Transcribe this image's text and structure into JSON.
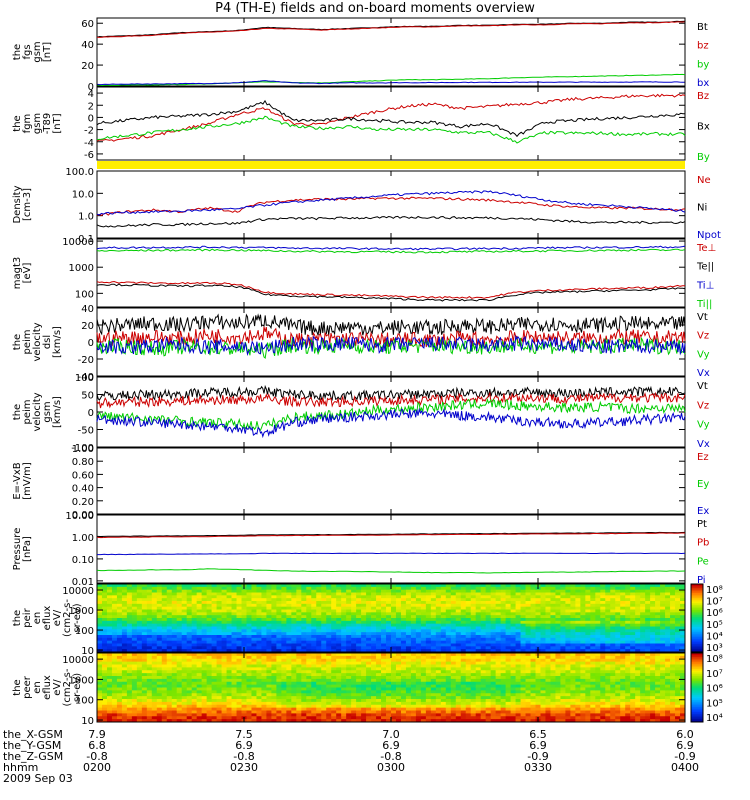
{
  "title": "P4 (TH-E) fields and on-board moments overview",
  "date_label": "2009 Sep 03",
  "colors": {
    "black": "#000000",
    "red": "#cc0000",
    "green": "#00cc00",
    "blue": "#0000cc",
    "yellow": "#ffee00",
    "dark_red": "#990000"
  },
  "chart_data": [
    {
      "type": "line",
      "panel": "fgs_gsm",
      "ylabel": [
        "the",
        "fgs",
        "gsm",
        "[nT]"
      ],
      "ylim": [
        0,
        65
      ],
      "yticks": [
        0,
        20,
        40,
        60
      ],
      "legend": [
        {
          "label": "Bt",
          "color": "#000000"
        },
        {
          "label": "bz",
          "color": "#cc0000"
        },
        {
          "label": "by",
          "color": "#00cc00"
        },
        {
          "label": "bx",
          "color": "#0000cc"
        }
      ],
      "series": [
        {
          "name": "Bt",
          "color": "#000000",
          "values": [
            47,
            48,
            49,
            51,
            52,
            53,
            56,
            55,
            54,
            55,
            56,
            57,
            57,
            58,
            58,
            59,
            59,
            60,
            60,
            61,
            61,
            62
          ]
        },
        {
          "name": "bz",
          "color": "#cc0000",
          "values": [
            46.5,
            47.5,
            48.5,
            50.5,
            51.5,
            52.5,
            55,
            54.5,
            53.5,
            54.5,
            55.5,
            56.5,
            56.5,
            57.5,
            57.5,
            58.5,
            58.5,
            59.5,
            59.5,
            60.5,
            60.5,
            61.5
          ]
        },
        {
          "name": "by",
          "color": "#00cc00",
          "values": [
            0.5,
            0.8,
            1,
            1.5,
            2,
            3,
            4,
            3.5,
            3,
            4,
            5,
            6,
            6,
            6.5,
            7,
            8,
            8.5,
            9,
            9.5,
            10,
            10.5,
            11
          ]
        },
        {
          "name": "bx",
          "color": "#0000cc",
          "values": [
            1.5,
            1.8,
            2,
            2.2,
            2.5,
            3,
            5,
            3,
            2.5,
            3,
            3,
            3.2,
            3.2,
            3.5,
            3.5,
            3.6,
            3.6,
            3.7,
            3.7,
            3.8,
            3.8,
            3.9
          ]
        }
      ]
    },
    {
      "type": "line",
      "panel": "fgm_gsm_dipole",
      "ylabel": [
        "the",
        "fgm",
        "gsm",
        "-T89",
        "[nT]"
      ],
      "ylim": [
        -7,
        5
      ],
      "yticks": [
        -6,
        -4,
        -2,
        0,
        2,
        4
      ],
      "legend": [
        {
          "label": "Bz",
          "color": "#cc0000"
        },
        {
          "label": "Bx",
          "color": "#000000"
        },
        {
          "label": "By",
          "color": "#00cc00"
        }
      ],
      "series": [
        {
          "name": "Bz",
          "color": "#cc0000",
          "values": [
            -4,
            -3.5,
            -3,
            -2,
            -1,
            0.5,
            1.5,
            -1,
            -1.2,
            0,
            1,
            1.8,
            2.2,
            1.5,
            1.8,
            2.2,
            2.5,
            3,
            3.2,
            3.5,
            3.6,
            3.6
          ]
        },
        {
          "name": "Bx",
          "color": "#000000",
          "values": [
            -1,
            -0.5,
            0,
            0.2,
            0.5,
            1,
            2.5,
            -0.5,
            -0.5,
            -0.2,
            -0.5,
            -0.8,
            -0.8,
            -1.5,
            -1,
            -3,
            -0.8,
            -0.5,
            -0.2,
            0,
            0.3,
            0.5
          ]
        },
        {
          "name": "By",
          "color": "#00cc00",
          "values": [
            -3.5,
            -3,
            -2.5,
            -2,
            -1.5,
            -1,
            0,
            -1.5,
            -1.8,
            -1.5,
            -2,
            -2,
            -2,
            -2.5,
            -2.5,
            -4,
            -2.5,
            -2.6,
            -2.6,
            -2.8,
            -2.7,
            -2.8
          ]
        }
      ]
    },
    {
      "type": "line",
      "panel": "density",
      "scale": "log",
      "ylabel": [
        "Density",
        "[cm-3]"
      ],
      "ylim": [
        0.1,
        100
      ],
      "yticks": [
        "0.1",
        "1.0",
        "10.0",
        "100.0"
      ],
      "legend": [
        {
          "label": "Ne",
          "color": "#cc0000"
        },
        {
          "label": "Ni",
          "color": "#000000"
        },
        {
          "label": "Npot",
          "color": "#0000cc"
        }
      ],
      "series": [
        {
          "name": "Ne",
          "color": "#cc0000",
          "values": [
            1,
            1.5,
            1.8,
            1.5,
            2.2,
            1.5,
            4,
            5,
            5.5,
            5.5,
            6,
            6,
            6,
            5.5,
            5,
            4,
            3,
            2.5,
            2.2,
            2.2,
            2,
            1.9
          ]
        },
        {
          "name": "Ni",
          "color": "#000000",
          "values": [
            0.35,
            0.35,
            0.4,
            0.4,
            0.45,
            0.45,
            0.7,
            0.75,
            0.75,
            0.8,
            0.8,
            0.85,
            0.85,
            0.8,
            0.8,
            0.75,
            0.65,
            0.55,
            0.5,
            0.5,
            0.5,
            0.5
          ]
        },
        {
          "name": "Npot",
          "color": "#0000cc",
          "values": [
            1.2,
            1.4,
            1.5,
            1.6,
            1.8,
            2,
            3,
            4,
            5,
            6,
            7.5,
            9,
            10,
            11,
            12,
            8,
            5,
            3.5,
            3,
            2.5,
            2,
            1.6
          ]
        }
      ]
    },
    {
      "type": "line",
      "panel": "temperature",
      "scale": "log",
      "ylabel": [
        "magt3",
        "[eV]"
      ],
      "ylim": [
        30,
        12000
      ],
      "yticks": [
        "100",
        "1000",
        "10000"
      ],
      "legend": [
        {
          "label": "Te⊥",
          "color": "#cc0000"
        },
        {
          "label": "Te||",
          "color": "#000000"
        },
        {
          "label": "Ti⊥",
          "color": "#0000cc"
        },
        {
          "label": "Ti||",
          "color": "#00cc00"
        }
      ],
      "series": [
        {
          "name": "Ti⊥",
          "color": "#0000cc",
          "values": [
            5500,
            5600,
            5700,
            5800,
            5900,
            5800,
            5600,
            5400,
            5300,
            5200,
            5100,
            5000,
            5000,
            5100,
            5200,
            5300,
            5500,
            5600,
            5700,
            5800,
            5900,
            6000
          ]
        },
        {
          "name": "Ti||",
          "color": "#00cc00",
          "values": [
            4200,
            4300,
            4400,
            4500,
            4600,
            4500,
            4300,
            4100,
            4000,
            3900,
            3900,
            3800,
            3800,
            3900,
            4000,
            4100,
            4200,
            4300,
            4400,
            4500,
            4500,
            4600
          ]
        },
        {
          "name": "Te⊥",
          "color": "#cc0000",
          "values": [
            280,
            260,
            250,
            240,
            250,
            220,
            110,
            95,
            90,
            85,
            80,
            75,
            70,
            70,
            70,
            110,
            130,
            140,
            150,
            160,
            170,
            200
          ]
        },
        {
          "name": "Te||",
          "color": "#000000",
          "values": [
            220,
            210,
            200,
            190,
            200,
            180,
            90,
            80,
            75,
            70,
            65,
            60,
            55,
            55,
            55,
            90,
            110,
            115,
            125,
            130,
            140,
            160
          ]
        }
      ]
    },
    {
      "type": "line",
      "panel": "velocity_perm_dsl",
      "ylabel": [
        "the",
        "peim",
        "velocity",
        "dsl",
        "[km/s]"
      ],
      "ylim": [
        -40,
        40
      ],
      "yticks": [
        -40,
        -20,
        0,
        20,
        40
      ],
      "legend": [
        {
          "label": "Vt",
          "color": "#000000"
        },
        {
          "label": "Vz",
          "color": "#cc0000"
        },
        {
          "label": "Vy",
          "color": "#00cc00"
        },
        {
          "label": "Vx",
          "color": "#0000cc"
        }
      ],
      "series": [
        {
          "name": "Vt",
          "color": "#000000",
          "values": [
            18,
            20,
            22,
            20,
            24,
            22,
            26,
            18,
            16,
            18,
            16,
            18,
            16,
            20,
            18,
            20,
            22,
            20,
            20,
            22,
            20,
            22
          ]
        },
        {
          "name": "Vz",
          "color": "#cc0000",
          "values": [
            4,
            5,
            6,
            4,
            8,
            6,
            10,
            2,
            3,
            4,
            2,
            3,
            2,
            4,
            3,
            5,
            6,
            4,
            5,
            6,
            4,
            6
          ]
        },
        {
          "name": "Vy",
          "color": "#00cc00",
          "values": [
            -6,
            -5,
            -8,
            -6,
            -7,
            -8,
            -10,
            -4,
            -5,
            -4,
            -6,
            -5,
            -4,
            -5,
            -6,
            -4,
            -5,
            -6,
            -5,
            -4,
            -5,
            -6
          ]
        },
        {
          "name": "Vx",
          "color": "#0000cc",
          "values": [
            -4,
            -6,
            -5,
            -3,
            -6,
            -5,
            -8,
            -2,
            -3,
            -2,
            -4,
            -3,
            -2,
            -3,
            -4,
            -2,
            -3,
            -4,
            -6,
            -5,
            -4,
            -5
          ]
        }
      ]
    },
    {
      "type": "line",
      "panel": "velocity_perm_gsm",
      "ylabel": [
        "the",
        "peim",
        "velocity",
        "gsm",
        "[km/s]"
      ],
      "ylim": [
        -100,
        100
      ],
      "yticks": [
        -100,
        -50,
        0,
        50,
        100
      ],
      "legend": [
        {
          "label": "Vt",
          "color": "#000000"
        },
        {
          "label": "Vz",
          "color": "#cc0000"
        },
        {
          "label": "Vy",
          "color": "#00cc00"
        },
        {
          "label": "Vx",
          "color": "#0000cc"
        }
      ],
      "series": [
        {
          "name": "Vt",
          "color": "#000000",
          "values": [
            45,
            48,
            50,
            52,
            55,
            58,
            60,
            50,
            48,
            46,
            48,
            50,
            52,
            54,
            55,
            56,
            55,
            54,
            56,
            58,
            57,
            58
          ]
        },
        {
          "name": "Vz",
          "color": "#cc0000",
          "values": [
            25,
            28,
            30,
            32,
            34,
            35,
            38,
            30,
            28,
            30,
            32,
            34,
            36,
            38,
            40,
            42,
            40,
            38,
            40,
            42,
            40,
            42
          ]
        },
        {
          "name": "Vy",
          "color": "#00cc00",
          "values": [
            -10,
            -15,
            -20,
            -25,
            -30,
            -35,
            -40,
            -15,
            -10,
            -5,
            5,
            10,
            15,
            20,
            25,
            18,
            15,
            12,
            15,
            10,
            12,
            10
          ]
        },
        {
          "name": "Vx",
          "color": "#0000cc",
          "values": [
            -20,
            -25,
            -30,
            -35,
            -40,
            -45,
            -60,
            -30,
            -20,
            -15,
            -10,
            -5,
            -5,
            -10,
            -15,
            -25,
            -30,
            -35,
            -30,
            -25,
            -20,
            -15
          ]
        }
      ]
    },
    {
      "type": "line",
      "panel": "efield",
      "ylabel": [
        "E=-VxB",
        "[mV/m]"
      ],
      "ylim": [
        0,
        1
      ],
      "yticks": [
        "0.00",
        "0.20",
        "0.40",
        "0.60",
        "0.80",
        "1.00"
      ],
      "legend": [
        {
          "label": "Ez",
          "color": "#cc0000"
        },
        {
          "label": "Ey",
          "color": "#00cc00"
        },
        {
          "label": "Ex",
          "color": "#0000cc"
        }
      ],
      "series": []
    },
    {
      "type": "line",
      "panel": "pressure",
      "scale": "log",
      "ylabel": [
        "Pressure",
        "[nPa]"
      ],
      "ylim": [
        0.008,
        10
      ],
      "yticks": [
        "0.01",
        "0.10",
        "1.00",
        "10.00"
      ],
      "legend": [
        {
          "label": "Pt",
          "color": "#000000"
        },
        {
          "label": "Pb",
          "color": "#cc0000"
        },
        {
          "label": "Pe",
          "color": "#00cc00"
        },
        {
          "label": "Pi",
          "color": "#0000cc"
        }
      ],
      "series": [
        {
          "name": "Pt",
          "color": "#000000",
          "values": [
            1.05,
            1.08,
            1.1,
            1.12,
            1.15,
            1.18,
            1.25,
            1.25,
            1.28,
            1.3,
            1.32,
            1.35,
            1.38,
            1.4,
            1.42,
            1.45,
            1.48,
            1.5,
            1.52,
            1.55,
            1.58,
            1.6
          ]
        },
        {
          "name": "Pb",
          "color": "#cc0000",
          "values": [
            0.95,
            0.98,
            1.0,
            1.02,
            1.05,
            1.08,
            1.15,
            1.15,
            1.18,
            1.2,
            1.22,
            1.25,
            1.28,
            1.3,
            1.32,
            1.35,
            1.38,
            1.4,
            1.42,
            1.45,
            1.48,
            1.5
          ]
        },
        {
          "name": "Pe",
          "color": "#00cc00",
          "values": [
            0.03,
            0.03,
            0.032,
            0.032,
            0.035,
            0.033,
            0.03,
            0.028,
            0.027,
            0.027,
            0.026,
            0.025,
            0.024,
            0.024,
            0.023,
            0.024,
            0.025,
            0.025,
            0.026,
            0.027,
            0.028,
            0.028
          ]
        },
        {
          "name": "Pi",
          "color": "#0000cc",
          "values": [
            0.16,
            0.16,
            0.165,
            0.165,
            0.17,
            0.17,
            0.18,
            0.18,
            0.18,
            0.18,
            0.18,
            0.18,
            0.18,
            0.18,
            0.18,
            0.18,
            0.18,
            0.18,
            0.18,
            0.18,
            0.18,
            0.18
          ]
        }
      ]
    },
    {
      "type": "heatmap",
      "panel": "ion_eflux",
      "scale": "log",
      "ylabel": [
        "the",
        "peir",
        "en",
        "eflux",
        "eV/",
        "(cm2-s-",
        "sr-eV)"
      ],
      "ylim": [
        8,
        20000
      ],
      "yticks": [
        "10",
        "100",
        "1000",
        "10000"
      ],
      "colorbar_ticks": [
        "10³",
        "10⁴",
        "10⁵",
        "10⁶",
        "10⁷",
        "10⁸"
      ],
      "energy_profile": [
        0.15,
        0.2,
        0.25,
        0.3,
        0.4,
        0.55,
        0.65,
        0.7,
        0.72,
        0.7,
        0.62,
        0.5
      ]
    },
    {
      "type": "heatmap",
      "panel": "electron_eflux",
      "scale": "log",
      "ylabel": [
        "the",
        "peer",
        "en",
        "eflux",
        "eV/",
        "(cm2-s-",
        "sr-eV)"
      ],
      "ylim": [
        8,
        20000
      ],
      "yticks": [
        "10",
        "100",
        "1000",
        "10000"
      ],
      "colorbar_ticks": [
        "10⁴",
        "10⁵",
        "10⁶",
        "10⁷",
        "10⁸"
      ],
      "energy_profile": [
        0.98,
        0.95,
        0.85,
        0.75,
        0.68,
        0.62,
        0.6,
        0.62,
        0.68,
        0.72,
        0.78,
        0.8
      ]
    }
  ],
  "footer": {
    "rows": [
      {
        "label": "the_X-GSM",
        "values": [
          "7.9",
          "7.5",
          "7.0",
          "6.5",
          "6.0"
        ]
      },
      {
        "label": "the_Y-GSM",
        "values": [
          "6.8",
          "6.9",
          "6.9",
          "6.9",
          "6.9"
        ]
      },
      {
        "label": "the_Z-GSM",
        "values": [
          "-0.8",
          "-0.8",
          "-0.8",
          "-0.9",
          "-0.9"
        ]
      },
      {
        "label": "hhmm",
        "values": [
          "0200",
          "0230",
          "0300",
          "0330",
          "0400"
        ]
      }
    ]
  }
}
